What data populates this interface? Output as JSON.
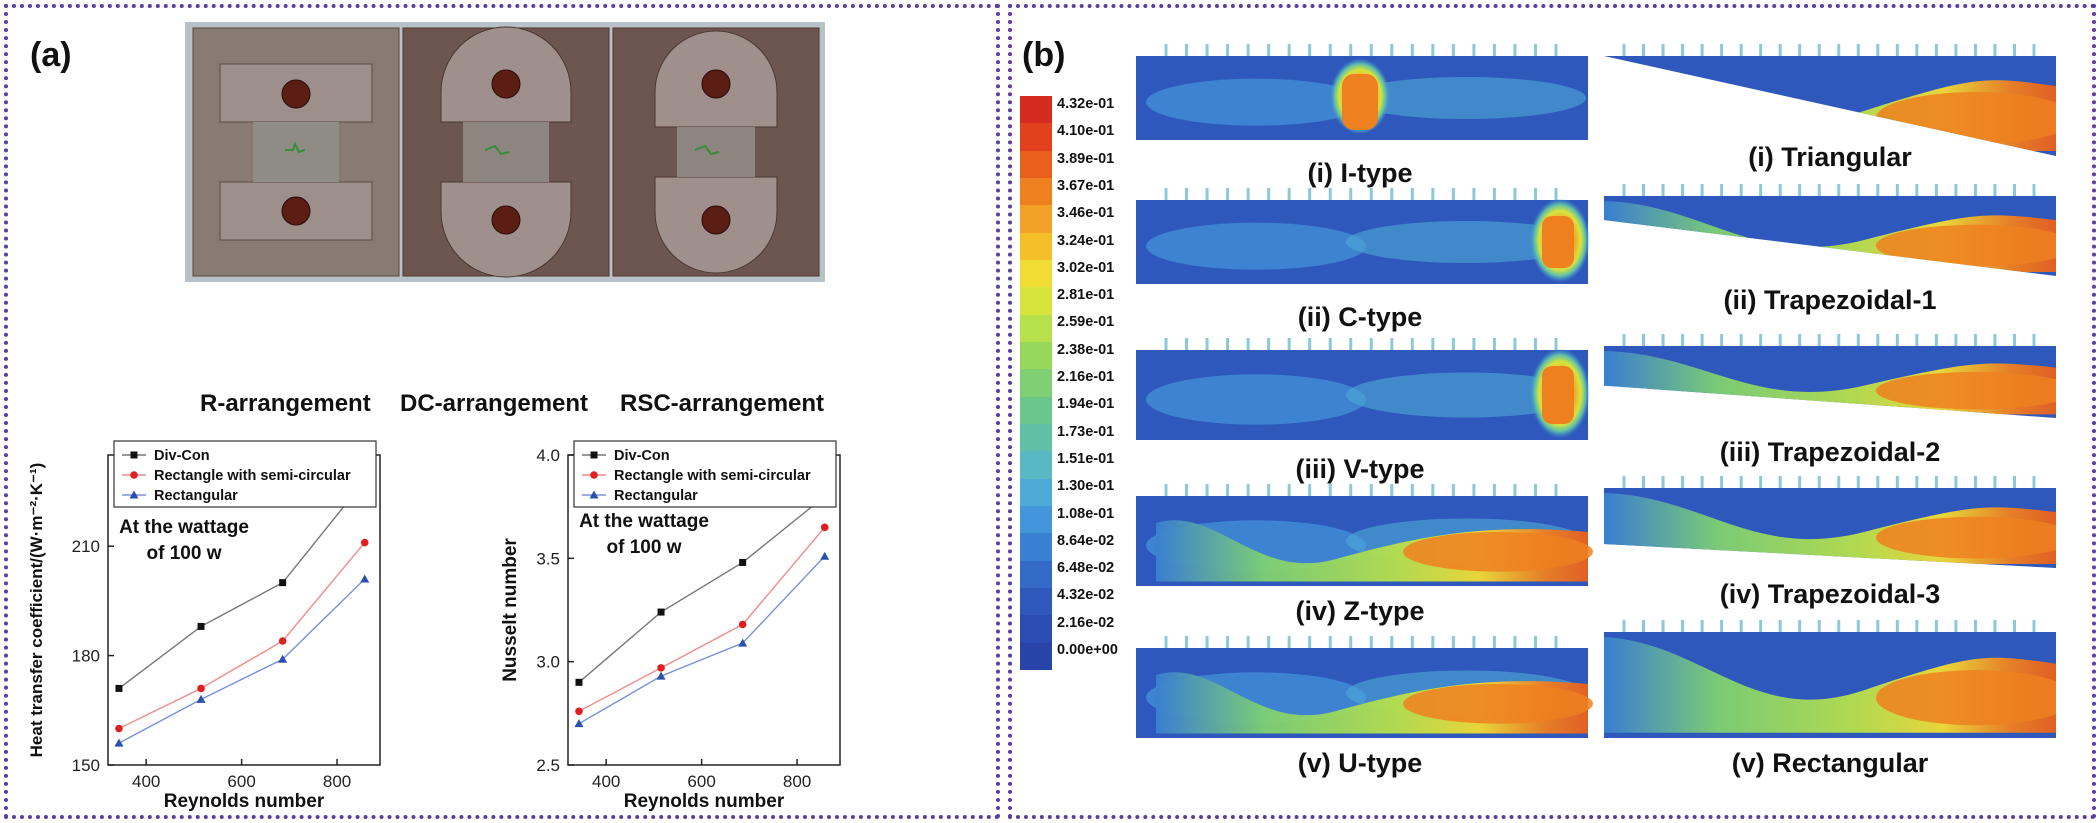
{
  "panel_a": {
    "label": "(a)",
    "arrangements": [
      "R-arrangement",
      "DC-arrangement",
      "RSC-arrangement"
    ]
  },
  "panel_b": {
    "label": "(b)",
    "scale_labels": [
      "4.32e-01",
      "4.10e-01",
      "3.89e-01",
      "3.67e-01",
      "3.46e-01",
      "3.24e-01",
      "3.02e-01",
      "2.81e-01",
      "2.59e-01",
      "2.38e-01",
      "2.16e-01",
      "1.94e-01",
      "1.73e-01",
      "1.51e-01",
      "1.30e-01",
      "1.08e-01",
      "8.64e-02",
      "6.48e-02",
      "4.32e-02",
      "2.16e-02",
      "0.00e+00"
    ],
    "scale_colors": [
      "#d42a20",
      "#e0401c",
      "#e9601c",
      "#ef8020",
      "#f3a026",
      "#f5bf2a",
      "#f1dc34",
      "#d6e43c",
      "#b6e04c",
      "#97d85c",
      "#7ed072",
      "#6ac68a",
      "#60c0a6",
      "#5ab8c4",
      "#4eaad6",
      "#4496da",
      "#3a80d2",
      "#346ac8",
      "#2e58bc",
      "#2b4cb2",
      "#2844a8"
    ],
    "left_labels": [
      "(i) I-type",
      "(ii) C-type",
      "(iii) V-type",
      "(iv) Z-type",
      "(v) U-type"
    ],
    "right_labels": [
      "(i) Triangular",
      "(ii) Trapezoidal-1",
      "(iii) Trapezoidal-2",
      "(iv) Trapezoidal-3",
      "(v) Rectangular"
    ]
  },
  "chart_data": [
    {
      "type": "line",
      "xlabel": "Reynolds number",
      "ylabel": "Heat transfer coefficient/(W·m⁻²·K⁻¹)",
      "annotation": [
        "At the wattage",
        "of 100 w"
      ],
      "xlim": [
        320,
        890
      ],
      "ylim": [
        150,
        235
      ],
      "xticks": [
        400,
        600,
        800
      ],
      "yticks": [
        150,
        180,
        210
      ],
      "x": [
        343,
        515,
        686,
        858
      ],
      "series": [
        {
          "name": "Div-Con",
          "marker": "square",
          "color": "#111111",
          "values": [
            171,
            188,
            200,
            228
          ]
        },
        {
          "name": "Rectangle with semi-circular",
          "marker": "circle",
          "color": "#e02020",
          "values": [
            160,
            171,
            184,
            211
          ]
        },
        {
          "name": "Rectangular",
          "marker": "triangle",
          "color": "#2a50b0",
          "values": [
            156,
            168,
            179,
            201
          ]
        }
      ]
    },
    {
      "type": "line",
      "xlabel": "Reynolds number",
      "ylabel": "Nusselt number",
      "annotation": [
        "At the wattage",
        "of 100 w"
      ],
      "xlim": [
        320,
        890
      ],
      "ylim": [
        2.5,
        4.0
      ],
      "xticks": [
        400,
        600,
        800
      ],
      "yticks": [
        2.5,
        3.0,
        3.5,
        4.0
      ],
      "x": [
        343,
        515,
        686,
        858
      ],
      "series": [
        {
          "name": "Div-Con",
          "marker": "square",
          "color": "#111111",
          "values": [
            2.9,
            3.24,
            3.48,
            3.8
          ]
        },
        {
          "name": "Rectangle with semi-circular",
          "marker": "circle",
          "color": "#e02020",
          "values": [
            2.76,
            2.97,
            3.18,
            3.65
          ]
        },
        {
          "name": "Rectangular",
          "marker": "triangle",
          "color": "#2a50b0",
          "values": [
            2.7,
            2.93,
            3.09,
            3.51
          ]
        }
      ]
    }
  ]
}
